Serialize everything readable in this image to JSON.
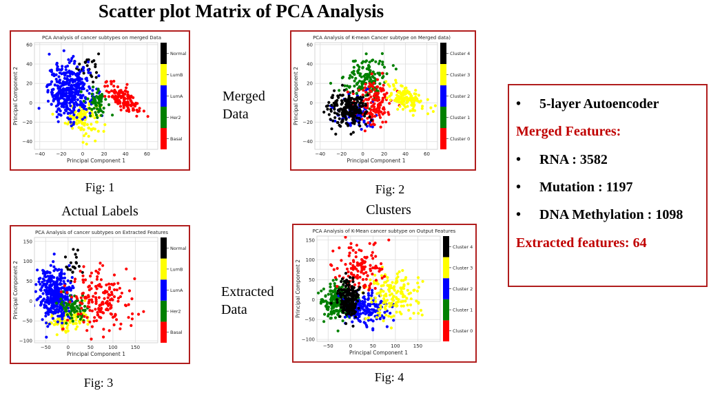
{
  "page": {
    "title": "Scatter plot Matrix of PCA Analysis",
    "row_labels": [
      "Merged\nData",
      "Extracted\nData"
    ],
    "col_labels": [
      "Actual Labels",
      "Clusters"
    ],
    "captions": [
      "Fig: 1",
      "Fig: 2",
      "Fig: 3",
      "Fig: 4"
    ]
  },
  "info": {
    "bullet": "•",
    "autoencoder": "5-layer Autoencoder",
    "merged_heading": "Merged Features:",
    "rna": "RNA : 3582",
    "mutation": "Mutation : 1197",
    "methylation": "DNA Methylation : 1098",
    "extracted": "Extracted features: 64"
  },
  "colors": {
    "border": "#b01c1c",
    "heading_red": "#c00000"
  },
  "chart_data": [
    {
      "type": "scatter",
      "title": "PCA Analysis of cancer subtypes on merged Data",
      "xlabel": "Principal Component 1",
      "ylabel": "Principal Component 2",
      "xlim": [
        -45,
        70
      ],
      "ylim": [
        -48,
        62
      ],
      "xticks": [
        -40,
        -20,
        0,
        20,
        40,
        60
      ],
      "yticks": [
        -40,
        -20,
        0,
        20,
        40,
        60
      ],
      "grid": true,
      "colorbar": {
        "labels": [
          "Basal",
          "Her2",
          "LumA",
          "LumB",
          "Normal"
        ],
        "colors": [
          "#ff0000",
          "#008000",
          "#0000ff",
          "#ffff00",
          "#000000"
        ]
      },
      "series": [
        {
          "name": "Normal",
          "color": "#000000",
          "n": 25,
          "cx": 5,
          "cy": 38,
          "sx": 5,
          "sy": 8,
          "tilt": 0
        },
        {
          "name": "LumB",
          "color": "#ffff00",
          "n": 110,
          "cx": 0,
          "cy": -15,
          "sx": 8,
          "sy": 9,
          "tilt": 0
        },
        {
          "name": "LumA",
          "color": "#0000ff",
          "n": 380,
          "cx": -12,
          "cy": 12,
          "sx": 10,
          "sy": 14,
          "tilt": 0
        },
        {
          "name": "Her2",
          "color": "#008000",
          "n": 60,
          "cx": 13,
          "cy": 2,
          "sx": 5,
          "sy": 7,
          "tilt": 0
        },
        {
          "name": "Basal",
          "color": "#ff0000",
          "n": 130,
          "cx": 38,
          "cy": 4,
          "sx": 11,
          "sy": 5,
          "tilt": -0.65
        }
      ]
    },
    {
      "type": "scatter",
      "title": "PCA Analysis of K-mean Cancer subtype on Merged data)",
      "xlabel": "Principal Component 1",
      "ylabel": "Principal Component 2",
      "xlim": [
        -45,
        70
      ],
      "ylim": [
        -48,
        62
      ],
      "xticks": [
        -40,
        -20,
        0,
        20,
        40,
        60
      ],
      "yticks": [
        -40,
        -20,
        0,
        20,
        40,
        60
      ],
      "grid": true,
      "colorbar": {
        "labels": [
          "Cluster 0",
          "Cluster 1",
          "Cluster 2",
          "Cluster 3",
          "Cluster 4"
        ],
        "colors": [
          "#ff0000",
          "#008000",
          "#0000ff",
          "#ffff00",
          "#000000"
        ]
      },
      "series": [
        {
          "name": "Cluster 1",
          "color": "#008000",
          "n": 150,
          "cx": 3,
          "cy": 25,
          "sx": 10,
          "sy": 12,
          "tilt": 0
        },
        {
          "name": "Cluster 2",
          "color": "#0000ff",
          "n": 90,
          "cx": -8,
          "cy": -10,
          "sx": 10,
          "sy": 9,
          "tilt": 0
        },
        {
          "name": "Cluster 0",
          "color": "#ff0000",
          "n": 140,
          "cx": 10,
          "cy": 0,
          "sx": 9,
          "sy": 12,
          "tilt": 0
        },
        {
          "name": "Cluster 4",
          "color": "#000000",
          "n": 220,
          "cx": -15,
          "cy": -7,
          "sx": 9,
          "sy": 8,
          "tilt": 0
        },
        {
          "name": "Cluster 3",
          "color": "#ffff00",
          "n": 130,
          "cx": 40,
          "cy": 5,
          "sx": 10,
          "sy": 5,
          "tilt": -0.65
        }
      ]
    },
    {
      "type": "scatter",
      "title": "PCA Analysis of cancer subtypes on Extracted Features",
      "xlabel": "Principal Component 1",
      "ylabel": "Principal Component 2",
      "xlim": [
        -75,
        200
      ],
      "ylim": [
        -105,
        160
      ],
      "xticks": [
        -50,
        0,
        50,
        100,
        150
      ],
      "yticks": [
        -100,
        -50,
        0,
        50,
        100,
        150
      ],
      "grid": true,
      "colorbar": {
        "labels": [
          "Basal",
          "Her2",
          "LumA",
          "LumB",
          "Normal"
        ],
        "colors": [
          "#ff0000",
          "#008000",
          "#0000ff",
          "#ffff00",
          "#000000"
        ]
      },
      "series": [
        {
          "name": "Normal",
          "color": "#000000",
          "n": 20,
          "cx": 15,
          "cy": 95,
          "sx": 15,
          "sy": 25,
          "tilt": 0
        },
        {
          "name": "LumB",
          "color": "#ffff00",
          "n": 120,
          "cx": 0,
          "cy": -45,
          "sx": 20,
          "sy": 18,
          "tilt": 0
        },
        {
          "name": "LumA",
          "color": "#0000ff",
          "n": 380,
          "cx": -30,
          "cy": 15,
          "sx": 18,
          "sy": 32,
          "tilt": 0
        },
        {
          "name": "Her2",
          "color": "#008000",
          "n": 70,
          "cx": 10,
          "cy": -15,
          "sx": 16,
          "sy": 15,
          "tilt": 0
        },
        {
          "name": "Basal",
          "color": "#ff0000",
          "n": 170,
          "cx": 70,
          "cy": 0,
          "sx": 35,
          "sy": 40,
          "tilt": 0
        }
      ]
    },
    {
      "type": "scatter",
      "title": "PCA Analysis of K-Mean cancer subtype on Output Features",
      "xlabel": "Principal Component 1",
      "ylabel": "Principal Component 2",
      "xlim": [
        -75,
        200
      ],
      "ylim": [
        -105,
        160
      ],
      "xticks": [
        -50,
        0,
        50,
        100,
        150
      ],
      "yticks": [
        -100,
        -50,
        0,
        50,
        100,
        150
      ],
      "grid": true,
      "colorbar": {
        "labels": [
          "Cluster 0",
          "Cluster 1",
          "Cluster 2",
          "Cluster 3",
          "Cluster 4"
        ],
        "colors": [
          "#ff0000",
          "#008000",
          "#0000ff",
          "#ffff00",
          "#000000"
        ]
      },
      "series": [
        {
          "name": "Cluster 1",
          "color": "#008000",
          "n": 200,
          "cx": -30,
          "cy": -5,
          "sx": 18,
          "sy": 22,
          "tilt": 0
        },
        {
          "name": "Cluster 2",
          "color": "#0000ff",
          "n": 160,
          "cx": 35,
          "cy": -25,
          "sx": 25,
          "sy": 22,
          "tilt": 0
        },
        {
          "name": "Cluster 3",
          "color": "#ffff00",
          "n": 150,
          "cx": 95,
          "cy": 10,
          "sx": 28,
          "sy": 30,
          "tilt": 0
        },
        {
          "name": "Cluster 0",
          "color": "#ff0000",
          "n": 120,
          "cx": 20,
          "cy": 75,
          "sx": 28,
          "sy": 35,
          "tilt": 0
        },
        {
          "name": "Cluster 4",
          "color": "#000000",
          "n": 200,
          "cx": -5,
          "cy": 0,
          "sx": 12,
          "sy": 25,
          "tilt": 0
        }
      ]
    }
  ]
}
